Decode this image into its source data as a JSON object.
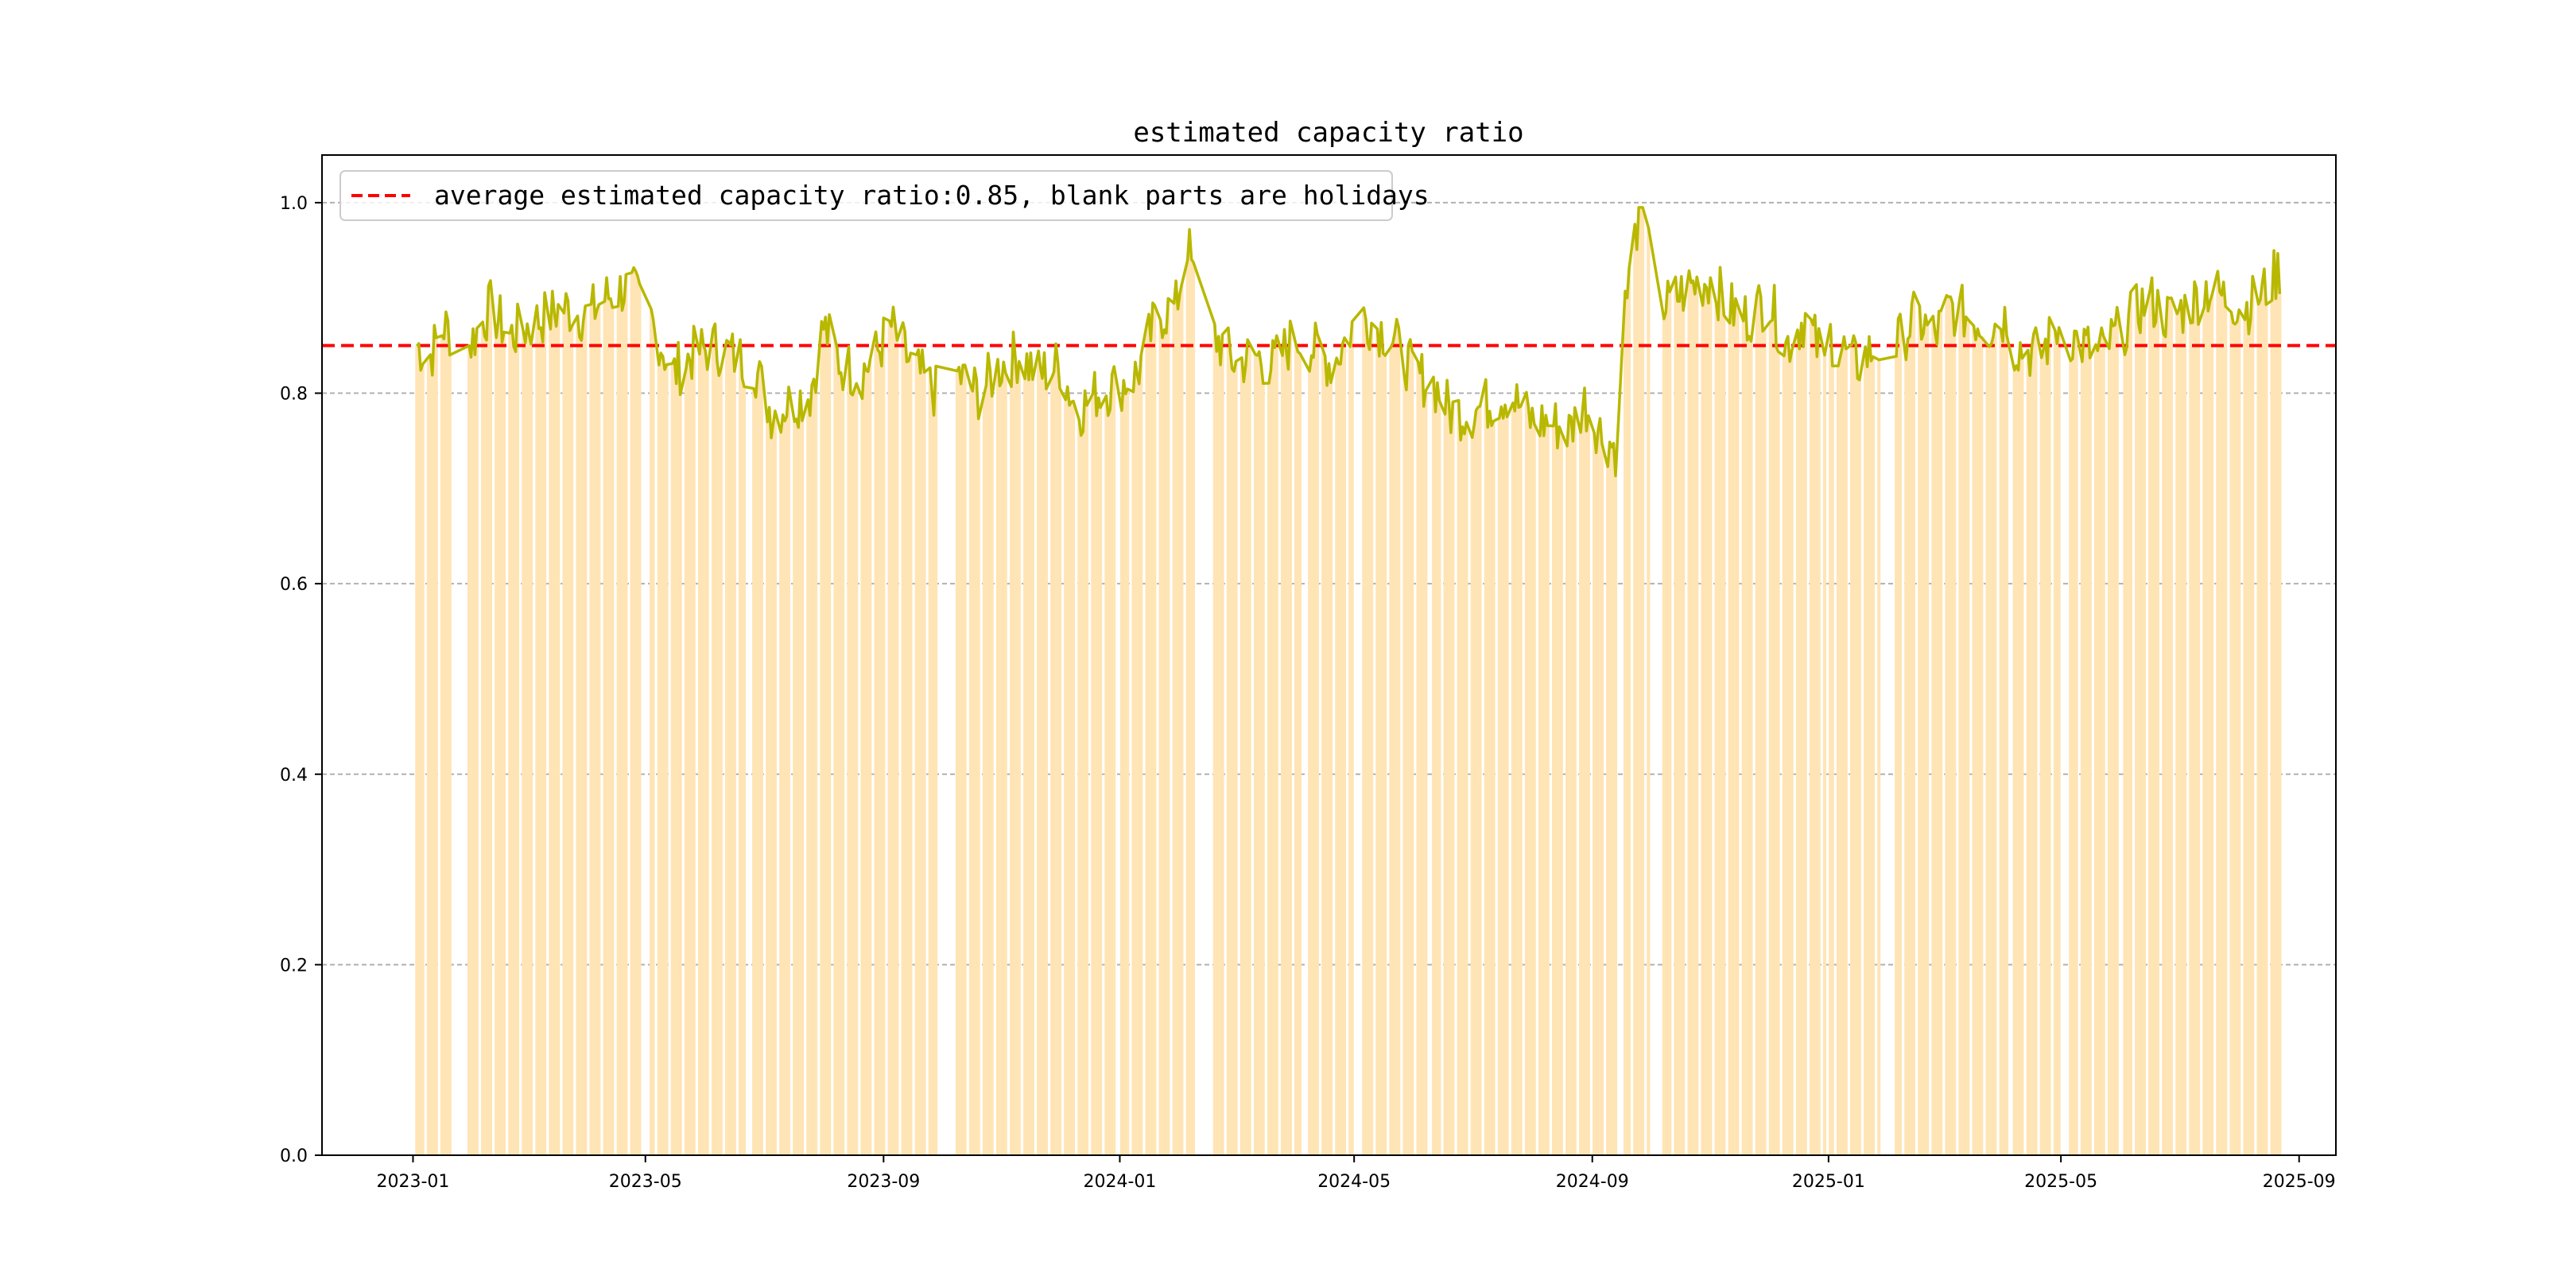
{
  "chart_data": {
    "type": "bar",
    "title": "estimated capacity ratio",
    "xlabel": "",
    "ylabel": "",
    "x_range": [
      "2022-11-15",
      "2025-09-20"
    ],
    "ylim": [
      0,
      1.05
    ],
    "x_ticks": [
      "2023-01",
      "2023-05",
      "2023-09",
      "2024-01",
      "2024-05",
      "2024-09",
      "2025-01",
      "2025-05",
      "2025-09"
    ],
    "y_ticks": [
      "0.0",
      "0.2",
      "0.4",
      "0.6",
      "0.8",
      "1.0"
    ],
    "grid": "horizontal dashed",
    "legend": {
      "placement": "top-left",
      "label": "average estimated capacity ratio:0.85, blank parts are holidays"
    },
    "average_line": {
      "value": 0.85,
      "color": "#ff0000",
      "style": "dashed"
    },
    "bar_color": "#ffe4b5",
    "line_color": "#b8b800",
    "holiday_gaps": [
      [
        "2023-01-21",
        "2023-01-29"
      ],
      [
        "2023-04-29",
        "2023-05-03"
      ],
      [
        "2023-06-22",
        "2023-06-25"
      ],
      [
        "2023-09-29",
        "2023-10-08"
      ],
      [
        "2023-12-30",
        "2024-01-01"
      ],
      [
        "2024-02-09",
        "2024-02-18"
      ],
      [
        "2024-04-04",
        "2024-04-07"
      ],
      [
        "2024-05-01",
        "2024-05-05"
      ],
      [
        "2024-06-08",
        "2024-06-10"
      ],
      [
        "2024-09-15",
        "2024-09-17"
      ],
      [
        "2024-10-01",
        "2024-10-07"
      ],
      [
        "2024-12-31",
        "2025-01-01"
      ],
      [
        "2025-01-28",
        "2025-02-04"
      ],
      [
        "2025-04-04",
        "2025-04-06"
      ],
      [
        "2025-05-01",
        "2025-05-05"
      ],
      [
        "2025-05-31",
        "2025-06-02"
      ]
    ],
    "series": [
      {
        "values": [
          [
            "2023-01-03",
            0.85
          ],
          [
            "2023-01-10",
            0.84
          ],
          [
            "2023-01-17",
            0.87
          ],
          [
            "2023-01-30",
            0.85
          ],
          [
            "2023-02-10",
            0.89
          ],
          [
            "2023-02-20",
            0.86
          ],
          [
            "2023-03-01",
            0.87
          ],
          [
            "2023-03-10",
            0.88
          ],
          [
            "2023-03-20",
            0.89
          ],
          [
            "2023-04-01",
            0.88
          ],
          [
            "2023-04-10",
            0.9
          ],
          [
            "2023-04-20",
            0.91
          ],
          [
            "2023-04-28",
            0.9
          ],
          [
            "2023-05-04",
            0.88
          ],
          [
            "2023-05-15",
            0.82
          ],
          [
            "2023-05-25",
            0.84
          ],
          [
            "2023-06-05",
            0.85
          ],
          [
            "2023-06-15",
            0.84
          ],
          [
            "2023-06-26",
            0.83
          ],
          [
            "2023-07-05",
            0.78
          ],
          [
            "2023-07-15",
            0.79
          ],
          [
            "2023-07-25",
            0.8
          ],
          [
            "2023-08-01",
            0.87
          ],
          [
            "2023-08-10",
            0.83
          ],
          [
            "2023-08-20",
            0.82
          ],
          [
            "2023-08-28",
            0.84
          ],
          [
            "2023-09-05",
            0.87
          ],
          [
            "2023-09-15",
            0.83
          ],
          [
            "2023-09-28",
            0.8
          ],
          [
            "2023-10-09",
            0.82
          ],
          [
            "2023-10-20",
            0.8
          ],
          [
            "2023-11-01",
            0.83
          ],
          [
            "2023-11-10",
            0.84
          ],
          [
            "2023-11-20",
            0.82
          ],
          [
            "2023-12-01",
            0.83
          ],
          [
            "2023-12-10",
            0.78
          ],
          [
            "2023-12-20",
            0.8
          ],
          [
            "2024-01-02",
            0.81
          ],
          [
            "2024-01-10",
            0.82
          ],
          [
            "2024-01-20",
            0.88
          ],
          [
            "2024-01-30",
            0.89
          ],
          [
            "2024-02-05",
            0.96
          ],
          [
            "2024-02-08",
            0.92
          ],
          [
            "2024-02-19",
            0.86
          ],
          [
            "2024-03-01",
            0.83
          ],
          [
            "2024-03-10",
            0.84
          ],
          [
            "2024-03-20",
            0.83
          ],
          [
            "2024-04-01",
            0.86
          ],
          [
            "2024-04-08",
            0.85
          ],
          [
            "2024-04-20",
            0.83
          ],
          [
            "2024-04-30",
            0.87
          ],
          [
            "2024-05-06",
            0.88
          ],
          [
            "2024-05-20",
            0.86
          ],
          [
            "2024-06-01",
            0.82
          ],
          [
            "2024-06-11",
            0.81
          ],
          [
            "2024-06-20",
            0.78
          ],
          [
            "2024-07-01",
            0.78
          ],
          [
            "2024-07-10",
            0.79
          ],
          [
            "2024-07-20",
            0.8
          ],
          [
            "2024-08-01",
            0.77
          ],
          [
            "2024-08-10",
            0.77
          ],
          [
            "2024-08-20",
            0.76
          ],
          [
            "2024-08-28",
            0.79
          ],
          [
            "2024-09-05",
            0.76
          ],
          [
            "2024-09-14",
            0.74
          ],
          [
            "2024-09-18",
            0.89
          ],
          [
            "2024-09-25",
            0.99
          ],
          [
            "2024-09-30",
            0.99
          ],
          [
            "2024-10-08",
            0.89
          ],
          [
            "2024-10-20",
            0.91
          ],
          [
            "2024-11-01",
            0.92
          ],
          [
            "2024-11-10",
            0.89
          ],
          [
            "2024-11-20",
            0.88
          ],
          [
            "2024-12-01",
            0.9
          ],
          [
            "2024-12-10",
            0.85
          ],
          [
            "2024-12-20",
            0.88
          ],
          [
            "2024-12-30",
            0.83
          ],
          [
            "2025-01-02",
            0.86
          ],
          [
            "2025-01-15",
            0.83
          ],
          [
            "2025-01-27",
            0.85
          ],
          [
            "2025-02-05",
            0.85
          ],
          [
            "2025-02-15",
            0.88
          ],
          [
            "2025-02-25",
            0.86
          ],
          [
            "2025-03-05",
            0.89
          ],
          [
            "2025-03-15",
            0.88
          ],
          [
            "2025-03-25",
            0.87
          ],
          [
            "2025-04-03",
            0.88
          ],
          [
            "2025-04-07",
            0.85
          ],
          [
            "2025-04-20",
            0.84
          ],
          [
            "2025-04-30",
            0.87
          ],
          [
            "2025-05-06",
            0.86
          ],
          [
            "2025-05-20",
            0.84
          ],
          [
            "2025-06-03",
            0.87
          ],
          [
            "2025-06-15",
            0.9
          ],
          [
            "2025-06-25",
            0.88
          ],
          [
            "2025-07-05",
            0.89
          ],
          [
            "2025-07-15",
            0.91
          ],
          [
            "2025-07-25",
            0.9
          ],
          [
            "2025-08-05",
            0.89
          ],
          [
            "2025-08-15",
            0.91
          ],
          [
            "2025-08-22",
            0.93
          ]
        ]
      }
    ]
  }
}
